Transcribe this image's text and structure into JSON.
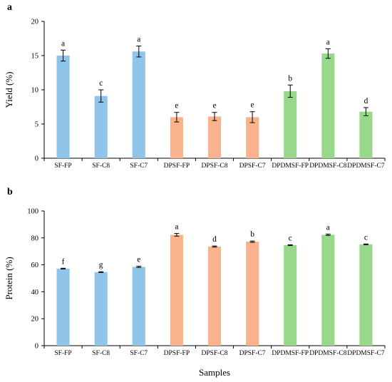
{
  "chart_data": [
    {
      "type": "bar",
      "panel_label": "a",
      "title": "",
      "xlabel": "",
      "ylabel": "Yield (%)",
      "ylim": [
        0,
        20
      ],
      "yticks": [
        0,
        5,
        10,
        15,
        20
      ],
      "grid": false,
      "legend": "none",
      "categories": [
        "SF-FP",
        "SF-C8",
        "SF-C7",
        "DPSF-FP",
        "DPSF-C8",
        "DPSF-C7",
        "DPDMSF-FP",
        "DPDMSF-C8",
        "DPDMSF-C7"
      ],
      "values": [
        15.0,
        9.1,
        15.6,
        6.0,
        6.1,
        6.0,
        9.8,
        15.3,
        6.8
      ],
      "errors": [
        0.8,
        0.9,
        0.8,
        0.7,
        0.6,
        0.8,
        0.9,
        0.7,
        0.6
      ],
      "significance": [
        "a",
        "c",
        "a",
        "e",
        "e",
        "e",
        "b",
        "a",
        "d"
      ],
      "colors": [
        "#8EC5E8",
        "#8EC5E8",
        "#8EC5E8",
        "#F8B28C",
        "#F8B28C",
        "#F8B28C",
        "#98D88A",
        "#98D88A",
        "#98D88A"
      ]
    },
    {
      "type": "bar",
      "panel_label": "b",
      "title": "",
      "xlabel": "Samples",
      "ylabel": "Protein (%)",
      "ylim": [
        0,
        100
      ],
      "yticks": [
        0,
        20,
        40,
        60,
        80,
        100
      ],
      "grid": false,
      "legend": "none",
      "categories": [
        "SF-FP",
        "SF-C8",
        "SF-C7",
        "DPSF-FP",
        "DPSF-C8",
        "DPSF-C7",
        "DPDMSF-FP",
        "DPDMSF-C8",
        "DPDMSF-C7"
      ],
      "values": [
        57.2,
        54.6,
        58.5,
        82.3,
        73.6,
        77.2,
        74.6,
        82.3,
        75.2
      ],
      "errors": [
        0.3,
        0.3,
        0.5,
        1.0,
        0.4,
        0.5,
        0.3,
        0.5,
        0.3
      ],
      "significance": [
        "f",
        "g",
        "e",
        "a",
        "d",
        "b",
        "c",
        "a",
        "c"
      ],
      "colors": [
        "#8EC5E8",
        "#8EC5E8",
        "#8EC5E8",
        "#F8B28C",
        "#F8B28C",
        "#F8B28C",
        "#98D88A",
        "#98D88A",
        "#98D88A"
      ]
    }
  ]
}
